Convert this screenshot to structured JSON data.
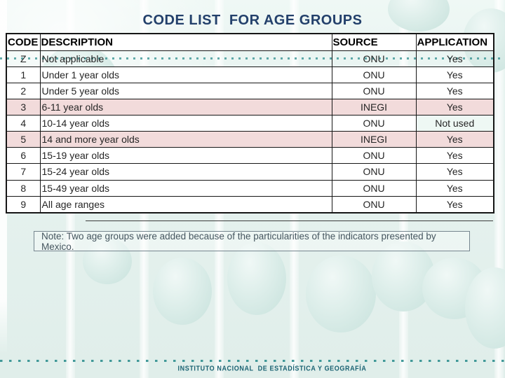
{
  "slide": {
    "title": "CODE LIST  FOR AGE GROUPS",
    "note": "Note: Two age groups were added because of the particularities of the indicators presented by Mexico.",
    "footer_logo_text": "INSTITUTO NACIONAL  DE ESTADÍSTICA Y GEOGRAFÍA"
  },
  "table": {
    "columns": [
      "CODE",
      "DESCRIPTION",
      "SOURCE",
      "APPLICATION"
    ],
    "rows": [
      {
        "code": "Z",
        "description": "Not applicable",
        "source": "ONU",
        "application": "Yes",
        "highlight": "teal"
      },
      {
        "code": "1",
        "description": "Under 1 year olds",
        "source": "ONU",
        "application": "Yes",
        "highlight": "none"
      },
      {
        "code": "2",
        "description": "Under 5 year olds",
        "source": "ONU",
        "application": "Yes",
        "highlight": "none"
      },
      {
        "code": "3",
        "description": "6-11 year olds",
        "source": "INEGI",
        "application": "Yes",
        "highlight": "pink"
      },
      {
        "code": "4",
        "description": "10-14 year olds",
        "source": "ONU",
        "application": "Not used",
        "highlight": "none",
        "app_cell_tint": true
      },
      {
        "code": "5",
        "description": "14 and more year olds",
        "source": "INEGI",
        "application": "Yes",
        "highlight": "pink"
      },
      {
        "code": "6",
        "description": "15-19 year olds",
        "source": "ONU",
        "application": "Yes",
        "highlight": "none"
      },
      {
        "code": "7",
        "description": "15-24 year olds",
        "source": "ONU",
        "application": "Yes",
        "highlight": "none"
      },
      {
        "code": "8",
        "description": "15-49 year olds",
        "source": "ONU",
        "application": "Yes",
        "highlight": "none"
      },
      {
        "code": "9",
        "description": "All age ranges",
        "source": "ONU",
        "application": "Yes",
        "highlight": "none"
      }
    ]
  },
  "colors": {
    "title": "#23406b",
    "row_highlight_pink": "#f2dbdb",
    "row_highlight_teal": "#e2f1ed",
    "dot_teal": "#2f8f8f",
    "logo_teal": "#1a6272",
    "note_text": "#45565f",
    "background": "#e7f3f0"
  }
}
